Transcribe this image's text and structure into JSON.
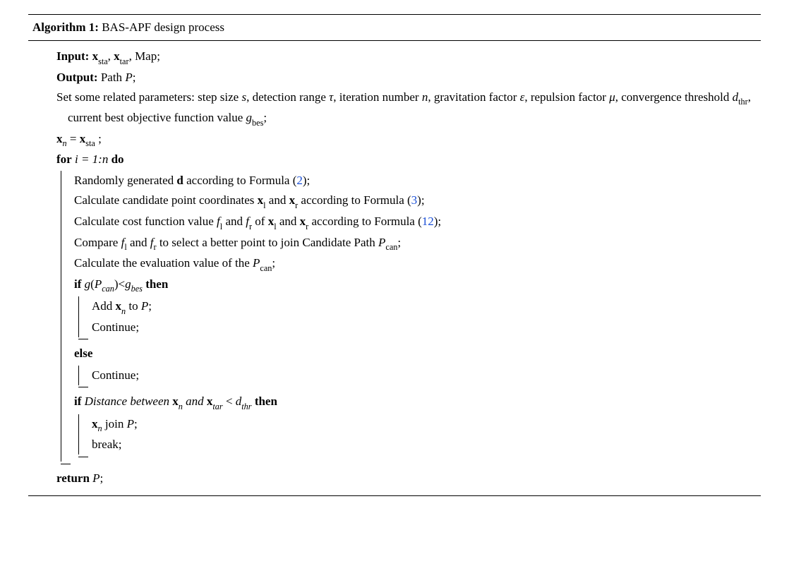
{
  "algorithm": {
    "label": "Algorithm 1:",
    "caption": "BAS-APF design process",
    "input_kw": "Input:",
    "input_body_html": " <b>x</b><span class='sub'>sta</span>, <b>x</b><span class='sub'>tar</span>, Map;",
    "output_kw": "Output:",
    "output_body_html": " Path <span class='it'>P</span>;",
    "params_html": "Set some related parameters: step size <span class='it'>s</span>, detection range <span class='it'>τ</span>, iteration number <span class='it'>n</span>, gravitation factor <span class='it'>ε</span>, repulsion factor <span class='it'>μ</span>, convergence threshold <span class='it'>d</span><span class='sub'>thr</span>, current best objective function value <span class='it'>g</span><span class='sub'>bes</span>;",
    "init_html": "<b>x</b><span class='it sub'>n</span> = <b>x</b><span class='sub'>sta</span> ;",
    "for_kw": "for",
    "for_cond_html": " <span class='it'>i = 1:n</span> ",
    "do_kw": "do",
    "body": {
      "l1_html": "Randomly generated <b>d</b> according to Formula (<span class='link'>2</span>);",
      "l2_html": "Calculate candidate point coordinates <b>x</b><span class='sub'>l</span> and <b>x</b><span class='sub'>r</span> according to Formula (<span class='link'>3</span>);",
      "l3_html": "Calculate cost function value <span class='it'>f</span><span class='sub'>l</span> and <span class='it'>f</span><span class='sub'>r</span> of <b>x</b><span class='sub'>l</span> and <b>x</b><span class='sub'>r</span> according to Formula (<span class='link'>12</span>);",
      "l4_html": "Compare <span class='it'>f</span><span class='sub'>l</span> and <span class='it'>f</span><span class='sub'>r</span> to select a better point to join Candidate Path <span class='it'>P</span><span class='sub'>can</span>;",
      "l5_html": "Calculate the evaluation value of the <span class='it'>P</span><span class='sub'>can</span>;",
      "if1_kw": "if",
      "if1_cond_html": " <span class='it'>g</span>(<span class='it'>P<span class='sub'>can</span></span>)&lt;<span class='it'>g<span class='sub'>bes</span></span> ",
      "then_kw": "then",
      "if1_body1_html": "Add <b>x</b><span class='it sub'>n</span> to <span class='it'>P</span>;",
      "if1_body2_html": "Continue;",
      "else_kw": "else",
      "else_body1_html": "Continue;",
      "if2_kw": "if",
      "if2_cond_html": " <span class='it'>Distance between</span> <b>x</b><span class='it sub'>n</span> <span class='it'>and</span> <b>x</b><span class='it sub'>tar</span> &lt; <span class='it'>d<span class='sub'>thr</span></span> ",
      "if2_body1_html": "<b>x</b><span class='it sub'>n</span> join <span class='it'>P</span>;",
      "if2_body2_html": "break;"
    },
    "return_kw": "return",
    "return_body_html": " <span class='it'>P</span>;"
  }
}
